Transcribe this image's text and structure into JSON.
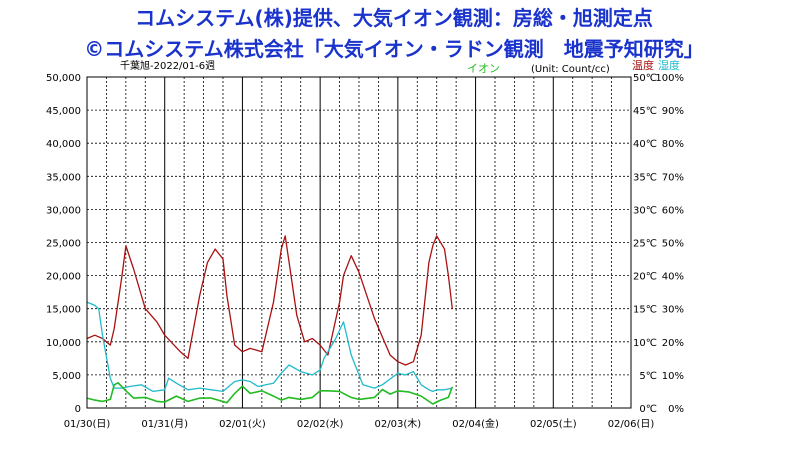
{
  "header": {
    "title_line1": "コムシステム(株)提供、大気イオン観測：房総・旭測定点",
    "title_line2": "©コムシステム株式会社「大気イオン・ラドン観測　地震予知研究」"
  },
  "chart_data": {
    "type": "line",
    "subtitle": "千葉旭-2022/01-6週",
    "unit_label": "(Unit: Count/cc)",
    "legend": [
      {
        "name": "イオン",
        "color": "#22bb22"
      },
      {
        "name": "温度",
        "color": "#aa1111"
      },
      {
        "name": "湿度",
        "color": "#22bbcc"
      }
    ],
    "x_tick_labels": [
      "01/30(日)",
      "01/31(月)",
      "02/01(火)",
      "02/02(水)",
      "02/03(木)",
      "02/04(金)",
      "02/05(土)",
      "02/06(日)"
    ],
    "x_range_days": [
      0,
      7
    ],
    "y_left": {
      "label": "イオン",
      "range": [
        0,
        50000
      ],
      "ticks": [
        "0",
        "5,000",
        "10,000",
        "15,000",
        "20,000",
        "25,000",
        "30,000",
        "35,000",
        "40,000",
        "45,000",
        "50,000"
      ]
    },
    "y_right_temp": {
      "label": "温度",
      "range": [
        0,
        50
      ],
      "ticks": [
        "0℃",
        "5℃",
        "10℃",
        "15℃",
        "20℃",
        "25℃",
        "30℃",
        "35℃",
        "40℃",
        "45℃",
        "50℃"
      ]
    },
    "y_right_humidity": {
      "label": "湿度",
      "range": [
        0,
        100
      ],
      "ticks": [
        "0%",
        "10%",
        "20%",
        "30%",
        "40%",
        "50%",
        "60%",
        "70%",
        "80%",
        "90%",
        "100%"
      ]
    },
    "grid": true,
    "series": [
      {
        "name": "温度",
        "axis": "temp",
        "color": "#aa1111",
        "x": [
          0,
          0.1,
          0.2,
          0.3,
          0.35,
          0.45,
          0.5,
          0.6,
          0.75,
          0.9,
          1.0,
          1.2,
          1.3,
          1.45,
          1.55,
          1.65,
          1.75,
          1.8,
          1.9,
          2.0,
          2.1,
          2.25,
          2.4,
          2.5,
          2.55,
          2.6,
          2.7,
          2.8,
          2.9,
          3.0,
          3.1,
          3.25,
          3.3,
          3.4,
          3.5,
          3.7,
          3.9,
          4.0,
          4.1,
          4.2,
          4.3,
          4.4,
          4.45,
          4.5,
          4.6,
          4.65,
          4.7
        ],
        "y": [
          10.5,
          11,
          10.5,
          9.5,
          12,
          20,
          24.5,
          21,
          15,
          13,
          11,
          8.5,
          7.5,
          17,
          22,
          24,
          22.5,
          17,
          9.5,
          8.5,
          9,
          8.5,
          16,
          24,
          26,
          22,
          14,
          10,
          10.5,
          9.5,
          8,
          16,
          20,
          23,
          20.5,
          13.5,
          8,
          7,
          6.5,
          7,
          11,
          22,
          24.5,
          26,
          24,
          20,
          15
        ]
      },
      {
        "name": "湿度",
        "axis": "humidity",
        "color": "#22bbcc",
        "x": [
          0,
          0.1,
          0.15,
          0.2,
          0.3,
          0.35,
          0.45,
          0.55,
          0.7,
          0.85,
          1.0,
          1.05,
          1.15,
          1.3,
          1.45,
          1.6,
          1.75,
          1.9,
          2.0,
          2.1,
          2.2,
          2.3,
          2.4,
          2.5,
          2.6,
          2.75,
          2.9,
          3.0,
          3.05,
          3.1,
          3.2,
          3.3,
          3.4,
          3.55,
          3.7,
          3.8,
          4.0,
          4.1,
          4.2,
          4.3,
          4.4,
          4.45,
          4.5,
          4.6,
          4.7
        ],
        "y": [
          32,
          31,
          30,
          22,
          9,
          6,
          6,
          6.5,
          7,
          5,
          5.5,
          9,
          7.5,
          5.5,
          6,
          5.5,
          5,
          8,
          8.5,
          8,
          6.5,
          7,
          7.5,
          10.5,
          13,
          11,
          10,
          11.5,
          15,
          17,
          21,
          26,
          16,
          7,
          6,
          7,
          10.5,
          10,
          11,
          7,
          5.5,
          5,
          5.5,
          5.5,
          6
        ]
      },
      {
        "name": "イオン",
        "axis": "ion",
        "color": "#22bb22",
        "x": [
          0,
          0.1,
          0.2,
          0.3,
          0.35,
          0.4,
          0.5,
          0.6,
          0.75,
          0.9,
          1.0,
          1.15,
          1.3,
          1.45,
          1.6,
          1.8,
          1.9,
          2.0,
          2.1,
          2.25,
          2.4,
          2.5,
          2.6,
          2.75,
          2.9,
          3.0,
          3.1,
          3.25,
          3.4,
          3.5,
          3.7,
          3.8,
          3.9,
          4.0,
          4.15,
          4.3,
          4.45,
          4.55,
          4.65,
          4.7
        ],
        "y": [
          1500,
          1200,
          1000,
          1300,
          3500,
          3800,
          2600,
          1500,
          1600,
          1000,
          900,
          1800,
          1000,
          1500,
          1500,
          800,
          2200,
          3300,
          2200,
          2600,
          1800,
          1200,
          1600,
          1300,
          1600,
          2600,
          2600,
          2500,
          1600,
          1300,
          1600,
          2800,
          2100,
          2600,
          2400,
          1800,
          600,
          1200,
          1600,
          3200
        ]
      }
    ]
  }
}
